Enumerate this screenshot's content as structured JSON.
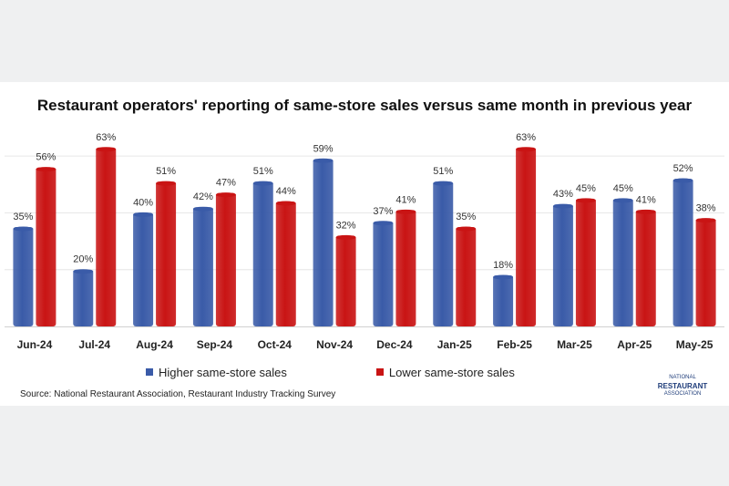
{
  "chart_data": {
    "type": "bar",
    "title": "Restaurant operators' reporting of same-store sales versus same month in previous year",
    "categories": [
      "Jun-24",
      "Jul-24",
      "Aug-24",
      "Sep-24",
      "Oct-24",
      "Nov-24",
      "Dec-24",
      "Jan-25",
      "Feb-25",
      "Mar-25",
      "Apr-25",
      "May-25"
    ],
    "series": [
      {
        "name": "Higher same-store sales",
        "color": "#3a5ba8",
        "values": [
          35,
          20,
          40,
          42,
          51,
          59,
          37,
          51,
          18,
          43,
          45,
          52
        ]
      },
      {
        "name": "Lower same-store sales",
        "color": "#c91414",
        "values": [
          56,
          63,
          51,
          47,
          44,
          32,
          41,
          35,
          63,
          45,
          41,
          38
        ]
      }
    ],
    "value_suffix": "%",
    "ylim": [
      0,
      70
    ],
    "grid": true,
    "legend": "bottom",
    "source": "Source: National Restaurant Association, Restaurant Industry Tracking Survey"
  },
  "logo": {
    "line1": "NATIONAL",
    "line2": "RESTAURANT",
    "line3": "ASSOCIATION"
  }
}
